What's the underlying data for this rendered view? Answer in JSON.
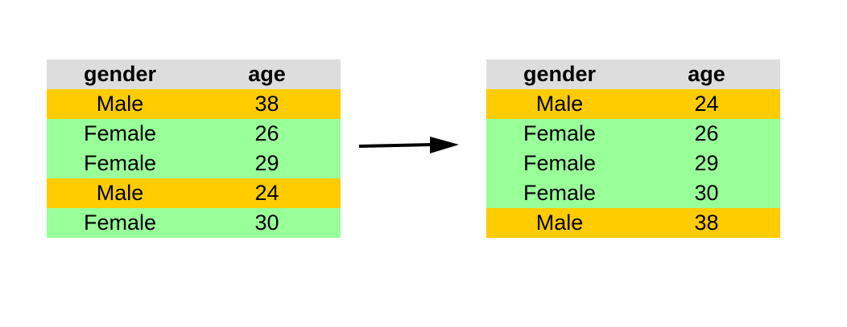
{
  "colors": {
    "header": "#dddddd",
    "male": "#ffcc00",
    "female": "#99ff99"
  },
  "left_table": {
    "headers": [
      "gender",
      "age"
    ],
    "rows": [
      {
        "gender": "Male",
        "age": "38",
        "group": "male"
      },
      {
        "gender": "Female",
        "age": "26",
        "group": "female"
      },
      {
        "gender": "Female",
        "age": "29",
        "group": "female"
      },
      {
        "gender": "Male",
        "age": "24",
        "group": "male"
      },
      {
        "gender": "Female",
        "age": "30",
        "group": "female"
      }
    ]
  },
  "right_table": {
    "headers": [
      "gender",
      "age"
    ],
    "rows": [
      {
        "gender": "Male",
        "age": "24",
        "group": "male"
      },
      {
        "gender": "Female",
        "age": "26",
        "group": "female"
      },
      {
        "gender": "Female",
        "age": "29",
        "group": "female"
      },
      {
        "gender": "Female",
        "age": "30",
        "group": "female"
      },
      {
        "gender": "Male",
        "age": "38",
        "group": "male"
      }
    ]
  }
}
